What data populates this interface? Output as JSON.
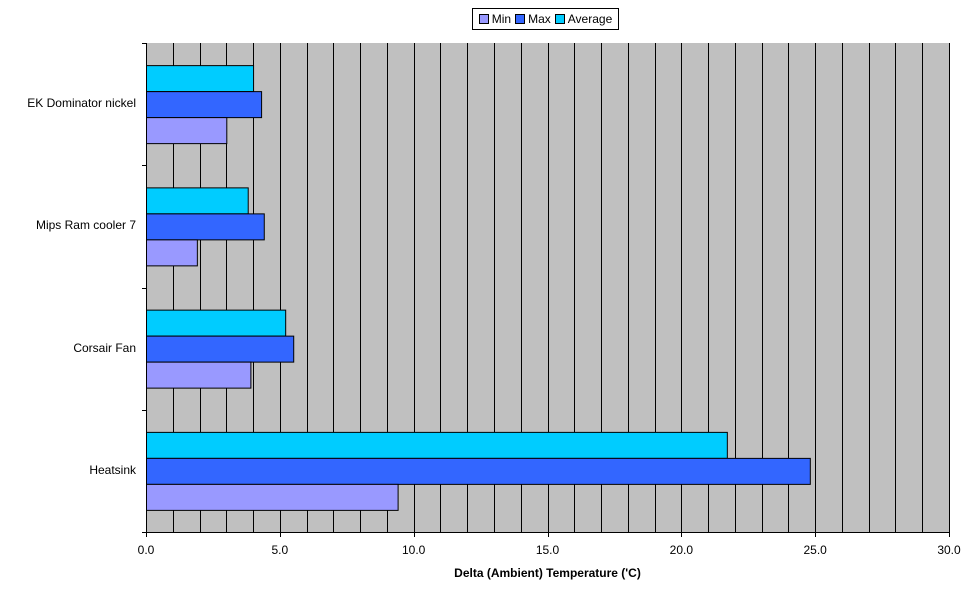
{
  "chart_data": {
    "type": "bar",
    "orientation": "horizontal",
    "categories": [
      "EK Dominator nickel",
      "Mips Ram cooler 7",
      "Corsair Fan",
      "Heatsink"
    ],
    "series": [
      {
        "name": "Min",
        "color": "#9999ff",
        "values": [
          3.0,
          1.9,
          3.9,
          9.4
        ]
      },
      {
        "name": "Max",
        "color": "#3366ff",
        "values": [
          4.3,
          4.4,
          5.5,
          24.8
        ]
      },
      {
        "name": "Average",
        "color": "#00ccff",
        "values": [
          4.0,
          3.8,
          5.2,
          21.7
        ]
      }
    ],
    "xlabel": "Delta (Ambient) Temperature ('C)",
    "xlim": [
      0,
      30
    ],
    "x_major_ticks": [
      "0.0",
      "5.0",
      "10.0",
      "15.0",
      "20.0",
      "25.0",
      "30.0"
    ],
    "x_minor_step": 1,
    "grid": true,
    "plot_background": "#c0c0c0",
    "legend_position": "top-center"
  }
}
